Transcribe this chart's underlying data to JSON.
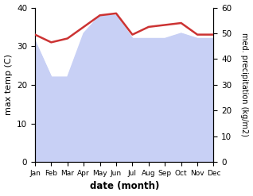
{
  "months": [
    "Jan",
    "Feb",
    "Mar",
    "Apr",
    "May",
    "Jun",
    "Jul",
    "Aug",
    "Sep",
    "Oct",
    "Nov",
    "Dec"
  ],
  "month_x": [
    0,
    1,
    2,
    3,
    4,
    5,
    6,
    7,
    8,
    9,
    10,
    11
  ],
  "temp": [
    33,
    31,
    32,
    35,
    38,
    38.5,
    33,
    35,
    35.5,
    36,
    33,
    33
  ],
  "precip": [
    47,
    33,
    33,
    50,
    57,
    57,
    48,
    48,
    48,
    50,
    48,
    48
  ],
  "temp_color": "#cc3333",
  "precip_fill_color": "#c8d0f5",
  "temp_ylim": [
    0,
    40
  ],
  "precip_ylim": [
    0,
    60
  ],
  "temp_yticks": [
    0,
    10,
    20,
    30,
    40
  ],
  "precip_yticks": [
    0,
    10,
    20,
    30,
    40,
    50,
    60
  ],
  "xlabel": "date (month)",
  "ylabel_left": "max temp (C)",
  "ylabel_right": "med. precipitation (kg/m2)",
  "bg_color": "#ffffff"
}
